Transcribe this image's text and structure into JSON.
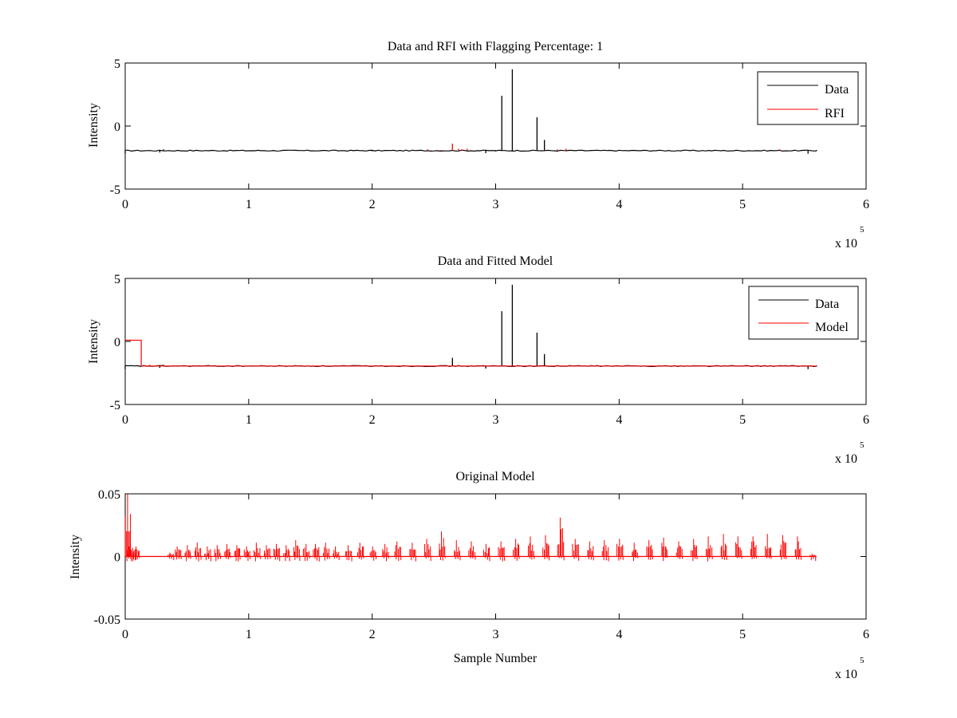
{
  "chart_data": [
    {
      "type": "line",
      "title": "Data and RFI with Flagging Percentage: 1",
      "xlabel": "",
      "ylabel": "Intensity",
      "xlim": [
        0,
        600000
      ],
      "ylim": [
        -5,
        5
      ],
      "xticks": [
        0,
        1,
        2,
        3,
        4,
        5,
        6
      ],
      "yticks": [
        -5,
        0,
        5
      ],
      "x_multiplier": "x 10",
      "x_multiplier_exponent": "5",
      "legend": {
        "location": "top-right",
        "entries": [
          "Data",
          "RFI"
        ]
      },
      "series": [
        {
          "name": "Data",
          "color": "#000000",
          "baseline": -1.95,
          "x": [
            0,
            3000,
            6000,
            28000,
            31000,
            34000,
            120000,
            200000,
            280000,
            292000,
            300000,
            303000,
            305000,
            307000,
            312000,
            313500,
            315000,
            318000,
            332000,
            333500,
            335000,
            338000,
            339500,
            341000,
            380000,
            470000,
            545000,
            553000,
            560000
          ],
          "y": [
            -2.2,
            -1.9,
            -1.95,
            -2.1,
            -1.85,
            -1.95,
            -2.0,
            -2.0,
            -1.95,
            -2.15,
            -1.9,
            -1.95,
            2.4,
            -1.95,
            -1.95,
            4.5,
            -1.95,
            -1.95,
            -1.95,
            0.7,
            -1.95,
            -1.95,
            -1.1,
            -1.95,
            -1.95,
            -1.95,
            -1.95,
            -2.2,
            -1.9
          ]
        },
        {
          "name": "RFI",
          "color": "#ff0000",
          "baseline": -1.95,
          "x": [
            245000,
            256000,
            265000,
            270000,
            273000,
            277000,
            350000,
            357000,
            530000
          ],
          "y": [
            -1.85,
            -1.9,
            -1.4,
            -1.8,
            -1.85,
            -1.8,
            -1.85,
            -1.8,
            -1.85
          ]
        }
      ]
    },
    {
      "type": "line",
      "title": "Data and Fitted Model",
      "xlabel": "",
      "ylabel": "Intensity",
      "xlim": [
        0,
        600000
      ],
      "ylim": [
        -5,
        5
      ],
      "xticks": [
        0,
        1,
        2,
        3,
        4,
        5,
        6
      ],
      "yticks": [
        -5,
        0,
        5
      ],
      "x_multiplier": "x 10",
      "x_multiplier_exponent": "5",
      "legend": {
        "location": "top-right",
        "entries": [
          "Data",
          "Model"
        ]
      },
      "series": [
        {
          "name": "Data",
          "color": "#000000",
          "baseline": -1.95,
          "x": [
            0,
            3000,
            28000,
            31000,
            265000,
            292000,
            300000,
            305000,
            313500,
            333500,
            339500,
            553000,
            560000
          ],
          "y": [
            -2.2,
            -1.9,
            -2.1,
            -1.85,
            -1.3,
            -2.15,
            -1.9,
            2.4,
            4.5,
            0.7,
            -1.0,
            -2.2,
            -1.9
          ]
        },
        {
          "name": "Model",
          "color": "#ff0000",
          "baseline": -1.95,
          "step": {
            "x0": 0,
            "x1": 13000,
            "level": 0.1
          },
          "x": [
            20000,
            40000,
            100000,
            200000,
            300000,
            400000,
            500000,
            560000
          ],
          "y": [
            -1.85,
            -1.9,
            -1.95,
            -1.95,
            -1.95,
            -1.95,
            -1.95,
            -1.95
          ]
        }
      ]
    },
    {
      "type": "line",
      "title": "Original Model",
      "xlabel": "Sample Number",
      "ylabel": "Intensity",
      "xlim": [
        0,
        600000
      ],
      "ylim": [
        -0.05,
        0.05
      ],
      "xticks": [
        0,
        1,
        2,
        3,
        4,
        5,
        6
      ],
      "yticks": [
        -0.05,
        0,
        0.05
      ],
      "ytick_labels": [
        "-0.05",
        "0",
        "0.05"
      ],
      "x_multiplier": "x 10",
      "x_multiplier_exponent": "5",
      "series": [
        {
          "name": "",
          "color": "#ff0000",
          "x": [
            1500,
            3000,
            5500,
            8500,
            36000,
            42000,
            50000,
            58000,
            66000,
            74000,
            82000,
            90000,
            98000,
            106000,
            114000,
            122000,
            130000,
            138000,
            146000,
            154000,
            162000,
            170000,
            180000,
            190000,
            200000,
            210000,
            220000,
            232000,
            244000,
            256000,
            268000,
            280000,
            292000,
            304000,
            316000,
            328000,
            340000,
            352000,
            364000,
            376000,
            388000,
            400000,
            412000,
            424000,
            436000,
            448000,
            460000,
            472000,
            484000,
            496000,
            508000,
            520000,
            532000,
            544000,
            556000
          ],
          "y": [
            0.05,
            0.008,
            0.007,
            0.008,
            0.003,
            0.008,
            0.009,
            0.011,
            0.008,
            0.009,
            0.01,
            0.009,
            0.008,
            0.011,
            0.009,
            0.01,
            0.009,
            0.013,
            0.01,
            0.01,
            0.011,
            0.008,
            0.009,
            0.011,
            0.008,
            0.01,
            0.012,
            0.011,
            0.014,
            0.02,
            0.013,
            0.012,
            0.01,
            0.012,
            0.014,
            0.016,
            0.017,
            0.031,
            0.014,
            0.012,
            0.013,
            0.014,
            0.011,
            0.013,
            0.015,
            0.012,
            0.014,
            0.016,
            0.018,
            0.016,
            0.016,
            0.018,
            0.017,
            0.016,
            0.002
          ],
          "min_dip": -0.005
        }
      ]
    }
  ]
}
